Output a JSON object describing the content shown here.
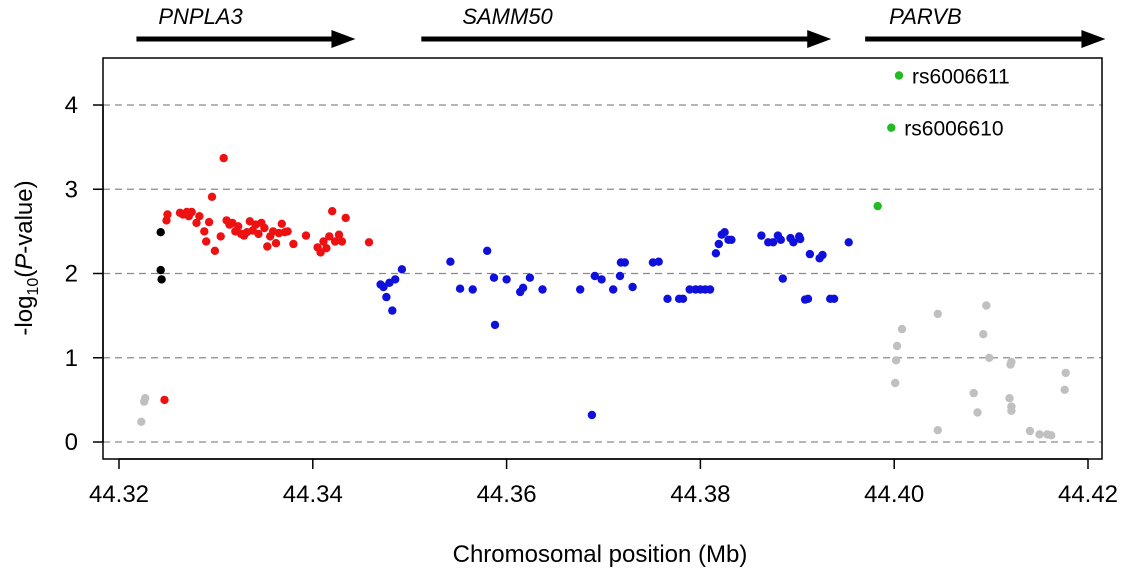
{
  "chart_data": {
    "type": "scatter",
    "title": "",
    "xlabel": "Chromosomal position (Mb)",
    "ylabel": "-log10(P-value)",
    "ylabel_parts": {
      "prefix": "-log",
      "sub": "10",
      "open": "(",
      "italic": "P",
      "suffix": "-value)"
    },
    "xlim": [
      44.32,
      44.42
    ],
    "ylim": [
      0,
      4.5
    ],
    "xticks": [
      "44.32",
      "44.34",
      "44.36",
      "44.38",
      "44.40",
      "44.42"
    ],
    "yticks": [
      "0",
      "1",
      "2",
      "3",
      "4"
    ],
    "grid": "horizontal dashed at y ticks",
    "colors": {
      "gray": "#c0c0c0",
      "black": "#000000",
      "red": "#ee1111",
      "blue": "#1010dd",
      "green": "#22bb22"
    },
    "genes": [
      {
        "name": "PNPLA3",
        "start": 44.3218,
        "end": 44.3444
      },
      {
        "name": "SAMM50",
        "start": 44.3512,
        "end": 44.3935
      },
      {
        "name": "PARVB",
        "start": 44.397,
        "end": 44.4218
      }
    ],
    "annotations": [
      {
        "label": "rs6006611",
        "x": 44.4005,
        "y": 4.35
      },
      {
        "label": "rs6006610",
        "x": 44.3997,
        "y": 3.73
      }
    ],
    "series": [
      {
        "color": "gray",
        "points": [
          [
            44.3223,
            0.24
          ],
          [
            44.3226,
            0.48
          ],
          [
            44.3227,
            0.52
          ],
          [
            44.4001,
            0.7
          ],
          [
            44.4002,
            0.97
          ],
          [
            44.4003,
            1.14
          ],
          [
            44.4008,
            1.34
          ],
          [
            44.4045,
            1.52
          ],
          [
            44.4045,
            0.14
          ],
          [
            44.4082,
            0.58
          ],
          [
            44.4086,
            0.35
          ],
          [
            44.4092,
            1.28
          ],
          [
            44.4095,
            1.62
          ],
          [
            44.4098,
            1.0
          ],
          [
            44.4119,
            0.52
          ],
          [
            44.412,
            0.92
          ],
          [
            44.4121,
            0.37
          ],
          [
            44.4121,
            0.42
          ],
          [
            44.4121,
            0.95
          ],
          [
            44.414,
            0.13
          ],
          [
            44.415,
            0.09
          ],
          [
            44.4158,
            0.09
          ],
          [
            44.4162,
            0.08
          ],
          [
            44.4176,
            0.62
          ],
          [
            44.4177,
            0.82
          ]
        ]
      },
      {
        "color": "black",
        "points": [
          [
            44.3243,
            2.49
          ],
          [
            44.3243,
            2.04
          ],
          [
            44.3244,
            1.93
          ]
        ]
      },
      {
        "color": "red",
        "points": [
          [
            44.3247,
            0.5
          ],
          [
            44.3249,
            2.63
          ],
          [
            44.325,
            2.7
          ],
          [
            44.3263,
            2.72
          ],
          [
            44.3266,
            2.7
          ],
          [
            44.327,
            2.73
          ],
          [
            44.3272,
            2.68
          ],
          [
            44.3275,
            2.73
          ],
          [
            44.328,
            2.6
          ],
          [
            44.3283,
            2.68
          ],
          [
            44.3288,
            2.5
          ],
          [
            44.329,
            2.38
          ],
          [
            44.3293,
            2.61
          ],
          [
            44.3296,
            2.91
          ],
          [
            44.3299,
            2.27
          ],
          [
            44.3305,
            2.44
          ],
          [
            44.3308,
            3.37
          ],
          [
            44.3311,
            2.63
          ],
          [
            44.3314,
            2.58
          ],
          [
            44.3317,
            2.6
          ],
          [
            44.332,
            2.5
          ],
          [
            44.3323,
            2.56
          ],
          [
            44.3326,
            2.47
          ],
          [
            44.3329,
            2.45
          ],
          [
            44.3332,
            2.49
          ],
          [
            44.3335,
            2.62
          ],
          [
            44.3338,
            2.51
          ],
          [
            44.3341,
            2.58
          ],
          [
            44.3344,
            2.47
          ],
          [
            44.3347,
            2.6
          ],
          [
            44.335,
            2.54
          ],
          [
            44.3353,
            2.32
          ],
          [
            44.3356,
            2.44
          ],
          [
            44.3359,
            2.5
          ],
          [
            44.3362,
            2.36
          ],
          [
            44.3365,
            2.48
          ],
          [
            44.3368,
            2.59
          ],
          [
            44.3371,
            2.49
          ],
          [
            44.3374,
            2.5
          ],
          [
            44.338,
            2.35
          ],
          [
            44.3393,
            2.45
          ],
          [
            44.3405,
            2.31
          ],
          [
            44.3408,
            2.25
          ],
          [
            44.3411,
            2.38
          ],
          [
            44.3414,
            2.3
          ],
          [
            44.3417,
            2.44
          ],
          [
            44.342,
            2.74
          ],
          [
            44.3423,
            2.38
          ],
          [
            44.3427,
            2.46
          ],
          [
            44.343,
            2.38
          ],
          [
            44.3434,
            2.66
          ],
          [
            44.3458,
            2.37
          ]
        ]
      },
      {
        "color": "blue",
        "points": [
          [
            44.347,
            1.87
          ],
          [
            44.3473,
            1.84
          ],
          [
            44.3476,
            1.72
          ],
          [
            44.3479,
            1.89
          ],
          [
            44.3482,
            1.56
          ],
          [
            44.3485,
            1.93
          ],
          [
            44.3492,
            2.05
          ],
          [
            44.3542,
            2.14
          ],
          [
            44.3552,
            1.82
          ],
          [
            44.3565,
            1.81
          ],
          [
            44.358,
            2.27
          ],
          [
            44.3587,
            1.95
          ],
          [
            44.3588,
            1.39
          ],
          [
            44.36,
            1.93
          ],
          [
            44.3614,
            1.78
          ],
          [
            44.3617,
            1.83
          ],
          [
            44.3624,
            1.95
          ],
          [
            44.3637,
            1.81
          ],
          [
            44.3676,
            1.81
          ],
          [
            44.3688,
            0.32
          ],
          [
            44.3691,
            1.97
          ],
          [
            44.3698,
            1.93
          ],
          [
            44.371,
            1.81
          ],
          [
            44.3717,
            1.97
          ],
          [
            44.3718,
            2.13
          ],
          [
            44.3722,
            2.13
          ],
          [
            44.373,
            1.84
          ],
          [
            44.3751,
            2.13
          ],
          [
            44.3757,
            2.14
          ],
          [
            44.3766,
            1.7
          ],
          [
            44.3778,
            1.7
          ],
          [
            44.3782,
            1.7
          ],
          [
            44.3789,
            1.81
          ],
          [
            44.3795,
            1.81
          ],
          [
            44.38,
            1.81
          ],
          [
            44.3805,
            1.81
          ],
          [
            44.381,
            1.81
          ],
          [
            44.3816,
            2.24
          ],
          [
            44.3819,
            2.35
          ],
          [
            44.3822,
            2.46
          ],
          [
            44.3825,
            2.49
          ],
          [
            44.3829,
            2.4
          ],
          [
            44.3832,
            2.4
          ],
          [
            44.3863,
            2.45
          ],
          [
            44.387,
            2.37
          ],
          [
            44.3875,
            2.37
          ],
          [
            44.388,
            2.45
          ],
          [
            44.3883,
            2.4
          ],
          [
            44.3885,
            1.94
          ],
          [
            44.3893,
            2.42
          ],
          [
            44.3896,
            2.37
          ],
          [
            44.3902,
            2.44
          ],
          [
            44.3903,
            2.41
          ],
          [
            44.3908,
            1.69
          ],
          [
            44.3911,
            1.7
          ],
          [
            44.3913,
            2.23
          ],
          [
            44.3923,
            2.18
          ],
          [
            44.3926,
            2.22
          ],
          [
            44.3934,
            1.7
          ],
          [
            44.3938,
            1.7
          ],
          [
            44.3953,
            2.37
          ]
        ]
      },
      {
        "color": "green",
        "points": [
          [
            44.3983,
            2.8
          ],
          [
            44.3997,
            3.73
          ],
          [
            44.4005,
            4.35
          ]
        ]
      }
    ]
  }
}
